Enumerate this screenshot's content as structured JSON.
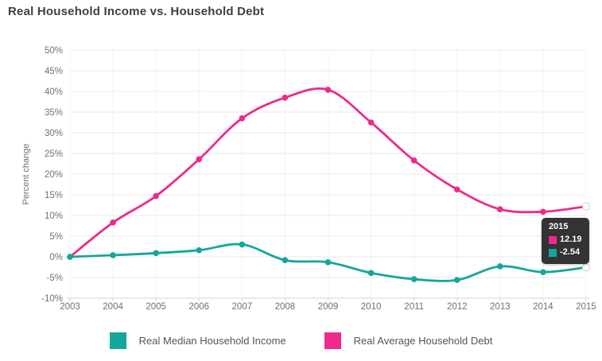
{
  "title": "Real Household Income vs. Household Debt",
  "colors": {
    "income": "#14A79B",
    "debt": "#EE2A8B",
    "title_text": "#3B4149",
    "axis_text": "#707070",
    "grid_h": "#E8E8E8",
    "grid_v": "#F4F4F4",
    "axis_line": "#D6D6D6",
    "tooltip_bg": "#333333",
    "tooltip_text": "#FFFFFF",
    "legend_text": "#555555",
    "endpoint_stroke": "#CCCCCC"
  },
  "chart_data": {
    "type": "line",
    "title": "Real Household Income vs. Household Debt",
    "x": [
      "2003",
      "2004",
      "2005",
      "2006",
      "2007",
      "2008",
      "2009",
      "2010",
      "2011",
      "2012",
      "2013",
      "2014",
      "2015"
    ],
    "series": [
      {
        "name": "Real Median Household Income",
        "color_key": "income",
        "values": [
          0,
          0.4,
          0.9,
          1.6,
          3.0,
          -0.8,
          -1.3,
          -3.9,
          -5.4,
          -5.6,
          -2.3,
          -3.7,
          -2.54
        ]
      },
      {
        "name": "Real Average Household Debt",
        "color_key": "debt",
        "values": [
          0,
          8.3,
          14.7,
          23.6,
          33.5,
          38.5,
          40.4,
          32.5,
          23.3,
          16.3,
          11.5,
          10.9,
          12.19
        ]
      }
    ],
    "xlabel": "",
    "ylabel": "Percent change",
    "ylim": [
      -10,
      50
    ],
    "ytick_step": 5,
    "ytick_suffix": "%",
    "grid": true,
    "legend_position": "bottom"
  },
  "tooltip": {
    "year": "2015",
    "rows": [
      {
        "series": "Real Average Household Debt",
        "color_key": "debt",
        "value": "12.19"
      },
      {
        "series": "Real Median Household Income",
        "color_key": "income",
        "value": "-2.54"
      }
    ]
  }
}
